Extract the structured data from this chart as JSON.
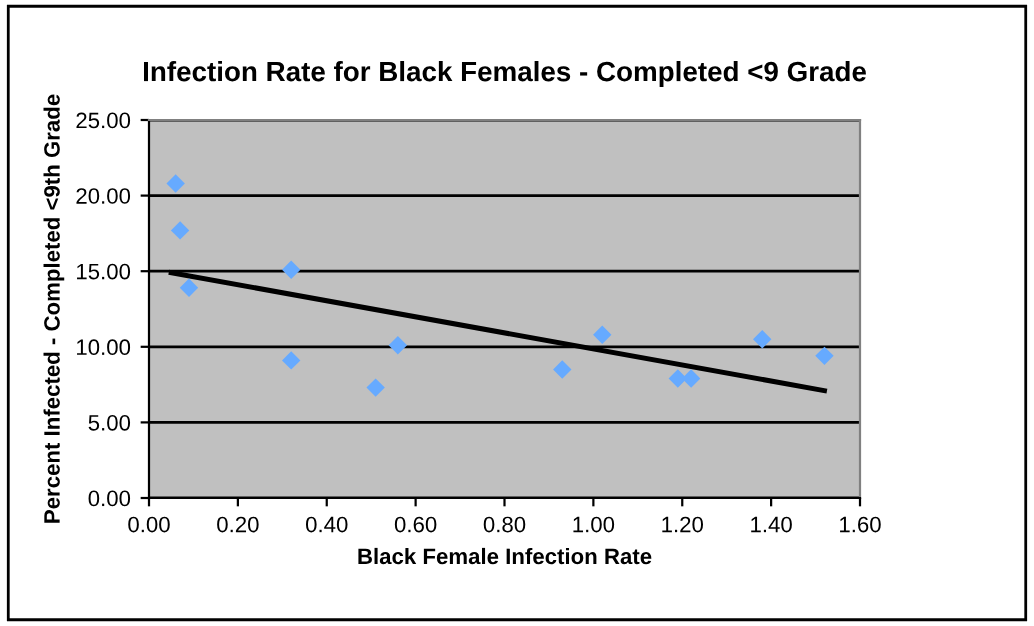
{
  "chart_data": {
    "type": "scatter",
    "title": "Infection Rate for Black Females - Completed <9 Grade",
    "xlabel": "Black Female Infection Rate",
    "ylabel": "Percent Infected - Completed <9th Grade",
    "series": [
      {
        "color": "#66aaff",
        "marker": "diamond",
        "x": [
          0.06,
          0.07,
          0.09,
          0.32,
          0.32,
          0.51,
          0.56,
          0.93,
          1.02,
          1.19,
          1.22,
          1.38,
          1.52
        ],
        "values": [
          20.8,
          17.7,
          13.9,
          15.1,
          9.1,
          7.3,
          10.1,
          8.5,
          10.8,
          7.9,
          7.9,
          10.5,
          9.4
        ]
      },
      {
        "type": "line",
        "color": "#000000",
        "x": [
          0.05,
          1.52
        ],
        "values": [
          14.9,
          7.1
        ]
      }
    ],
    "xlim": [
      0,
      1.6
    ],
    "xticks": [
      {
        "value": 0,
        "label": "0.00"
      },
      {
        "value": 0.2,
        "label": "0.20"
      },
      {
        "value": 0.4,
        "label": "0.40"
      },
      {
        "value": 0.6,
        "label": "0.60"
      },
      {
        "value": 0.8,
        "label": "0.80"
      },
      {
        "value": 1.0,
        "label": "1.00"
      },
      {
        "value": 1.2,
        "label": "1.20"
      },
      {
        "value": 1.4,
        "label": "1.40"
      },
      {
        "value": 1.6,
        "label": "1.60"
      }
    ],
    "ylim": [
      0,
      25
    ],
    "yticks": [
      {
        "value": 0,
        "label": "0.00"
      },
      {
        "value": 5,
        "label": "5.00"
      },
      {
        "value": 10,
        "label": "10.00"
      },
      {
        "value": 15,
        "label": "15.00"
      },
      {
        "value": 20,
        "label": "20.00"
      },
      {
        "value": 25,
        "label": "25.00"
      }
    ],
    "grid": "y"
  }
}
